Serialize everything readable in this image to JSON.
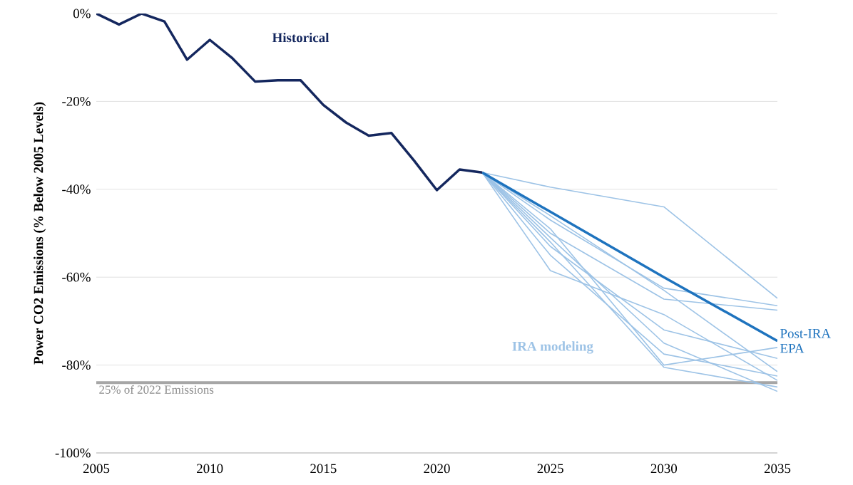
{
  "chart_data": {
    "type": "line",
    "ylabel": "Power CO2 Emissions (% Below 2005 Levels)",
    "xlim": [
      2005,
      2035
    ],
    "xticks": [
      2005,
      2010,
      2015,
      2020,
      2025,
      2030,
      2035
    ],
    "ylim": [
      -100,
      0
    ],
    "yticks": [
      {
        "value": -100,
        "label": "-100%"
      },
      {
        "value": -80,
        "label": "-80%"
      },
      {
        "value": -60,
        "label": "-60%"
      },
      {
        "value": -40,
        "label": "-40%"
      },
      {
        "value": -20,
        "label": "-20%"
      },
      {
        "value": 0,
        "label": "0%"
      }
    ],
    "grid": "y",
    "marker": "none",
    "line_style": "solid",
    "annotations": [
      "IRA modeling"
    ],
    "ref_lines": [
      {
        "axis": "y",
        "value": -84,
        "label": "25% of 2022 Emissions",
        "color": "#a6a6a6"
      }
    ],
    "series": [
      {
        "x": [
          2022,
          2025,
          2030,
          2035
        ],
        "values": [
          -36.2,
          -39.5,
          -44,
          -64.8
        ],
        "color": "#9dc3e6"
      },
      {
        "x": [
          2022,
          2025,
          2030,
          2035
        ],
        "values": [
          -36.2,
          -47,
          -62.5,
          -66.5
        ],
        "color": "#9dc3e6"
      },
      {
        "x": [
          2022,
          2025,
          2030,
          2035
        ],
        "values": [
          -36.2,
          -50,
          -65,
          -67.5
        ],
        "color": "#9dc3e6"
      },
      {
        "x": [
          2022,
          2025,
          2030,
          2035
        ],
        "values": [
          -36.2,
          -58.5,
          -68.5,
          -83.5
        ],
        "color": "#9dc3e6"
      },
      {
        "x": [
          2022,
          2025,
          2030,
          2035
        ],
        "values": [
          -36.2,
          -49,
          -80,
          -76
        ],
        "color": "#9dc3e6"
      },
      {
        "x": [
          2022,
          2025,
          2030,
          2035
        ],
        "values": [
          -36.2,
          -52,
          -80.5,
          -85
        ],
        "color": "#9dc3e6"
      },
      {
        "x": [
          2022,
          2025,
          2030,
          2035
        ],
        "values": [
          -36.2,
          -53,
          -72,
          -78.5
        ],
        "color": "#9dc3e6"
      },
      {
        "x": [
          2022,
          2025,
          2030,
          2035
        ],
        "values": [
          -36.2,
          -55,
          -77.5,
          -82.5
        ],
        "color": "#9dc3e6"
      },
      {
        "x": [
          2022,
          2025,
          2030,
          2035
        ],
        "values": [
          -36.2,
          -46,
          -63,
          -81.5
        ],
        "color": "#9dc3e6"
      },
      {
        "x": [
          2022,
          2025,
          2030,
          2035
        ],
        "values": [
          -36.2,
          -51,
          -75,
          -86
        ],
        "color": "#9dc3e6"
      },
      {
        "name": "Post-IRA EPA",
        "x": [
          2022,
          2030,
          2035
        ],
        "values": [
          -36.2,
          -60,
          -74.5
        ],
        "color": "#1e73be"
      },
      {
        "name": "Historical",
        "x": [
          2005,
          2006,
          2007,
          2008,
          2009,
          2010,
          2011,
          2012,
          2013,
          2014,
          2015,
          2016,
          2017,
          2018,
          2019,
          2020,
          2021,
          2022
        ],
        "values": [
          0,
          -2.5,
          0,
          -1.8,
          -10.5,
          -6,
          -10.2,
          -15.5,
          -15.2,
          -15.2,
          -20.8,
          -24.8,
          -27.8,
          -27.2,
          -33.5,
          -40.2,
          -35.5,
          -36.2
        ],
        "color": "#14275e"
      }
    ]
  }
}
